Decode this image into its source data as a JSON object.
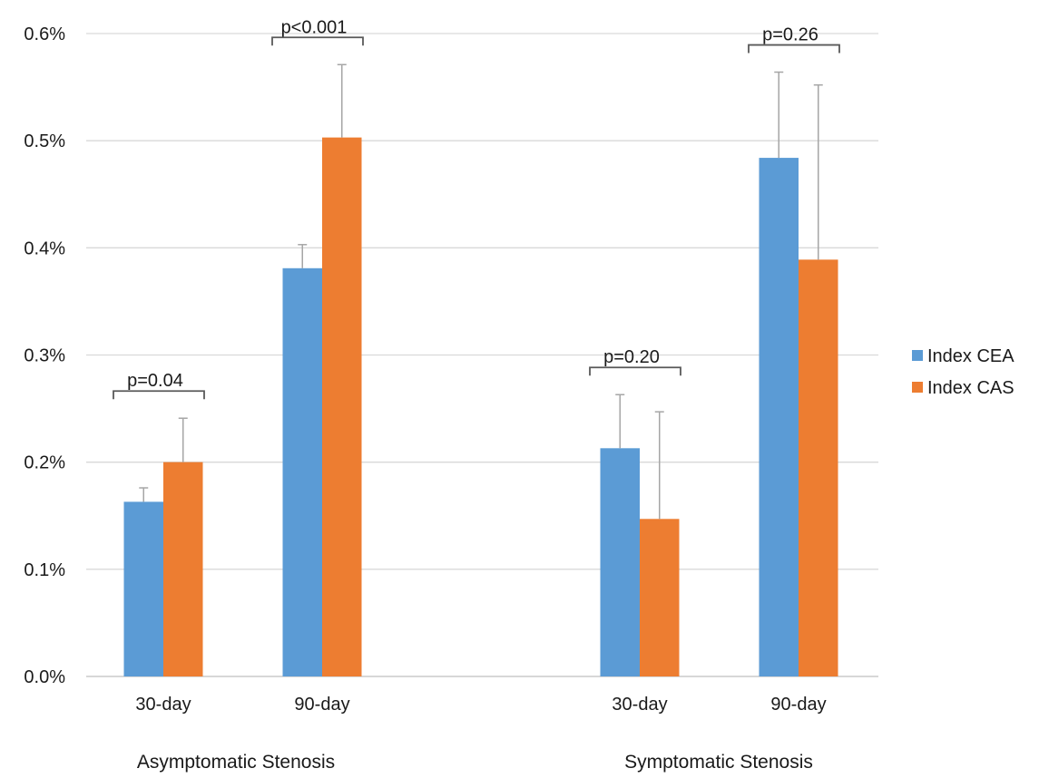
{
  "chart_data": {
    "type": "bar",
    "y_tick_labels": [
      "0.0%",
      "0.1%",
      "0.2%",
      "0.3%",
      "0.4%",
      "0.5%",
      "0.6%"
    ],
    "ylim": [
      0,
      0.6
    ],
    "grid": true,
    "legend_position": "right",
    "series": [
      {
        "name": "Index CEA",
        "color": "#5b9bd5"
      },
      {
        "name": "Index CAS",
        "color": "#ed7d31"
      }
    ],
    "groups": [
      {
        "label": "Asymptomatic Stenosis",
        "categories": [
          {
            "label": "30-day",
            "values": [
              0.163,
              0.2
            ],
            "errors": [
              0.013,
              0.041
            ],
            "p_label": "p=0.04"
          },
          {
            "label": "90-day",
            "values": [
              0.381,
              0.503
            ],
            "errors": [
              0.022,
              0.068
            ],
            "p_label": "p<0.001"
          }
        ]
      },
      {
        "label": "Symptomatic Stenosis",
        "categories": [
          {
            "label": "30-day",
            "values": [
              0.213,
              0.147
            ],
            "errors": [
              0.05,
              0.1
            ],
            "p_label": "p=0.20"
          },
          {
            "label": "90-day",
            "values": [
              0.484,
              0.389
            ],
            "errors": [
              0.08,
              0.163
            ],
            "p_label": "p=0.26"
          }
        ]
      }
    ]
  }
}
